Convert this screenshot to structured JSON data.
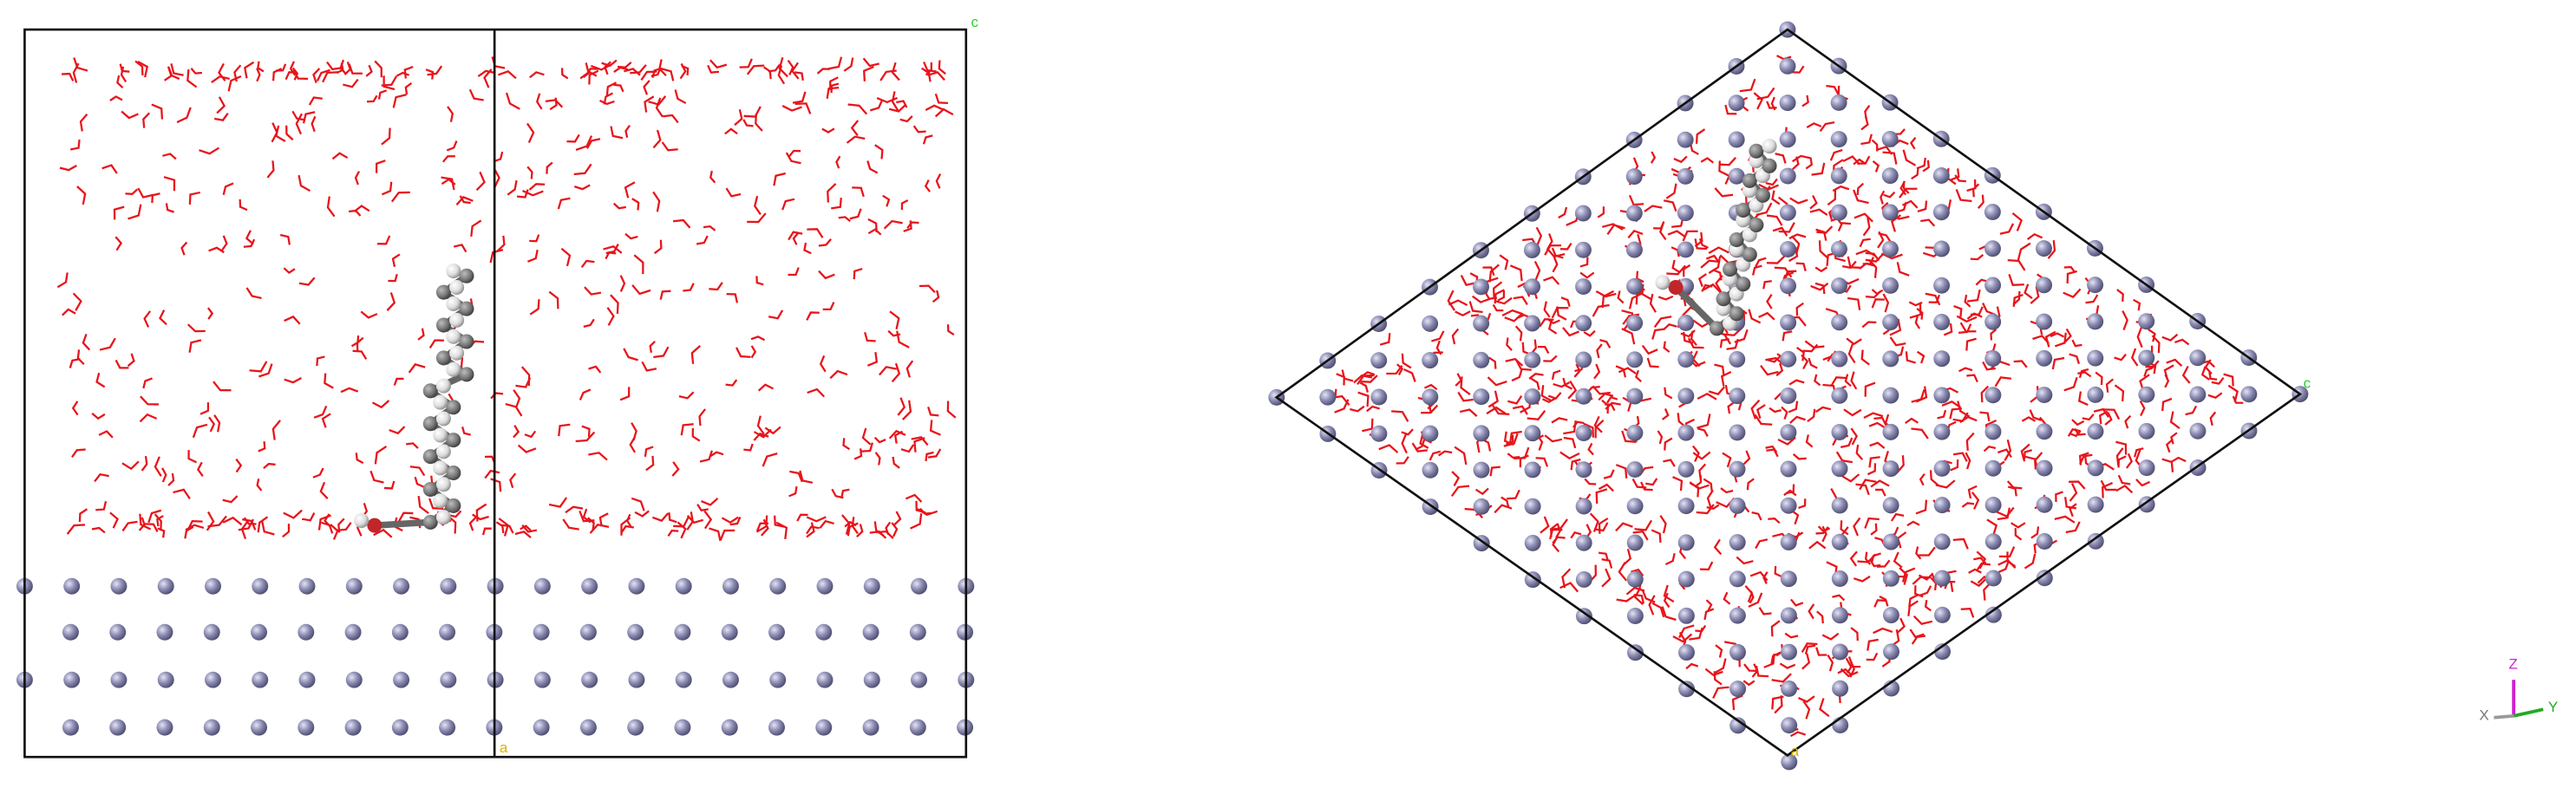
{
  "left_view": {
    "corner_top": "c",
    "corner_bottom": "a"
  },
  "right_view": {
    "corner_right": "c",
    "corner_bottom": "a"
  },
  "axes": {
    "z": "Z",
    "x": "X",
    "y": "Y"
  }
}
